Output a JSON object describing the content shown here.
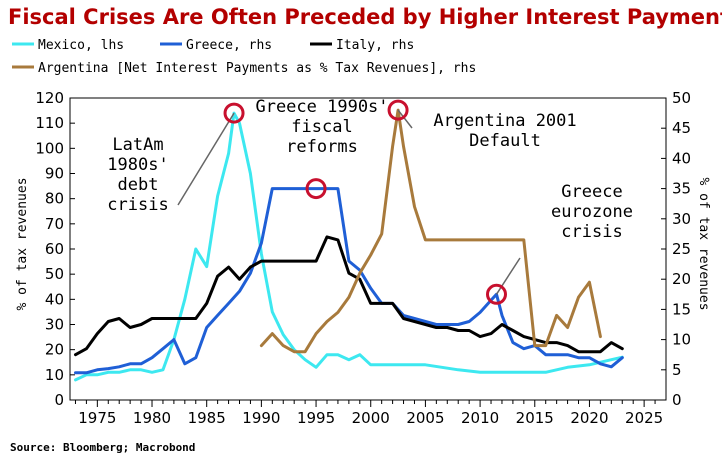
{
  "chart_data": {
    "type": "line",
    "title": "Fiscal Crises Are Often Preceded by Higher Interest Payments",
    "source": "Source: Bloomberg; Macrobond",
    "ylabel_left": "% of tax revenues",
    "ylabel_right": "% of tax revenues",
    "ylim_left": [
      0,
      120
    ],
    "ylim_right": [
      0,
      50
    ],
    "xlim": [
      1972.5,
      2027
    ],
    "x_ticks": [
      1975,
      1980,
      1985,
      1990,
      1995,
      2000,
      2005,
      2010,
      2015,
      2020,
      2025
    ],
    "y_ticks_left": [
      0,
      10,
      20,
      30,
      40,
      50,
      60,
      70,
      80,
      90,
      100,
      110,
      120
    ],
    "y_ticks_right": [
      0,
      5,
      10,
      15,
      20,
      25,
      30,
      35,
      40,
      45,
      50
    ],
    "legend_labels": {
      "mexico": "Mexico, lhs",
      "greece": "Greece, rhs",
      "italy": "Italy, rhs",
      "argentina": "Argentina [Net Interest Payments as % Tax Revenues], rhs"
    },
    "series": [
      {
        "key": "mexico",
        "name": "Mexico, lhs",
        "axis": "left",
        "color": "#3de8f0",
        "x": [
          1973,
          1974,
          1975,
          1976,
          1977,
          1978,
          1979,
          1980,
          1981,
          1982,
          1983,
          1984,
          1985,
          1986,
          1987,
          1987.5,
          1988,
          1989,
          1990,
          1991,
          1992,
          1993,
          1994,
          1995,
          1996,
          1997,
          1998,
          1999,
          2000,
          2001,
          2002,
          2003,
          2005,
          2008,
          2010,
          2012,
          2014,
          2015,
          2016,
          2018,
          2020,
          2022,
          2023
        ],
        "values": [
          8,
          10,
          10,
          11,
          11,
          12,
          12,
          11,
          12,
          24,
          40,
          60,
          53,
          81,
          98,
          114,
          110,
          90,
          58,
          35,
          26,
          20,
          16,
          13,
          18,
          18,
          16,
          18,
          14,
          14,
          14,
          14,
          14,
          12,
          11,
          11,
          11,
          11,
          11,
          13,
          14,
          16,
          17
        ]
      },
      {
        "key": "greece",
        "name": "Greece, rhs",
        "axis": "right",
        "color": "#1f5fd6",
        "x": [
          1973,
          1974,
          1975,
          1976,
          1977,
          1978,
          1979,
          1980,
          1981,
          1982,
          1983,
          1984,
          1985,
          1986,
          1987,
          1988,
          1989,
          1990,
          1991,
          1992,
          1993,
          1994,
          1995,
          1996,
          1997,
          1998,
          1999,
          2000,
          2001,
          2002,
          2003,
          2004,
          2005,
          2006,
          2007,
          2008,
          2009,
          2010,
          2011,
          2011.5,
          2012,
          2013,
          2014,
          2015,
          2016,
          2017,
          2018,
          2019,
          2020,
          2021,
          2022,
          2023
        ],
        "values": [
          4.5,
          4.5,
          5,
          5.2,
          5.5,
          6,
          6,
          7,
          8.5,
          10,
          6,
          7,
          12,
          14,
          16,
          18,
          21,
          26,
          35,
          35,
          35,
          35,
          35,
          35,
          35,
          23,
          21.5,
          18.5,
          16,
          16,
          14,
          13.5,
          13,
          12.5,
          12.5,
          12.5,
          13,
          14.5,
          16.5,
          17.5,
          14,
          9.5,
          8.5,
          9,
          7.5,
          7.5,
          7.5,
          7,
          7,
          6,
          5.5,
          7
        ]
      },
      {
        "key": "italy",
        "name": "Italy, rhs",
        "axis": "right",
        "color": "#000000",
        "x": [
          1973,
          1974,
          1975,
          1976,
          1977,
          1978,
          1979,
          1980,
          1981,
          1982,
          1983,
          1984,
          1985,
          1986,
          1987,
          1988,
          1989,
          1990,
          1991,
          1992,
          1993,
          1994,
          1995,
          1996,
          1997,
          1998,
          1999,
          2000,
          2001,
          2002,
          2003,
          2004,
          2005,
          2006,
          2007,
          2008,
          2009,
          2010,
          2011,
          2012,
          2013,
          2014,
          2015,
          2016,
          2017,
          2018,
          2019,
          2020,
          2021,
          2022,
          2023
        ],
        "values": [
          7.5,
          8.5,
          11,
          13,
          13.5,
          12,
          12.5,
          13.5,
          13.5,
          13.5,
          13.5,
          13.5,
          16,
          20.5,
          22,
          20,
          22,
          23,
          23,
          23,
          23,
          23,
          23,
          27,
          26.5,
          21,
          20,
          16,
          16,
          16,
          13.5,
          13,
          12.5,
          12,
          12,
          11.5,
          11.5,
          10.5,
          11,
          12.5,
          11.5,
          10.5,
          10,
          9.5,
          9.5,
          9,
          8,
          8,
          8,
          9.5,
          8.5
        ]
      },
      {
        "key": "argentina",
        "name": "Argentina [Net Interest Payments as % Tax Revenues], rhs",
        "axis": "right",
        "color": "#a87a3c",
        "x": [
          1990,
          1991,
          1992,
          1993,
          1994,
          1995,
          1996,
          1997,
          1998,
          1999,
          2000,
          2001,
          2002,
          2002.5,
          2003,
          2004,
          2005,
          2006,
          2007,
          2008,
          2009,
          2010,
          2011,
          2012,
          2013,
          2014,
          2015,
          2016,
          2017,
          2018,
          2019,
          2020,
          2021
        ],
        "values": [
          9,
          11,
          9,
          8,
          8,
          11,
          13,
          14.5,
          17,
          21,
          24,
          27.5,
          42,
          48,
          42,
          32,
          26.5,
          26.5,
          26.5,
          26.5,
          26.5,
          26.5,
          26.5,
          26.5,
          26.5,
          26.5,
          9,
          9,
          14,
          12,
          17,
          19.5,
          10.5
        ]
      }
    ],
    "annotations": [
      {
        "lines": [
          "LatAm",
          "1980s'",
          "debt",
          "crisis"
        ]
      },
      {
        "lines": [
          "Greece 1990s'",
          "fiscal",
          "reforms"
        ]
      },
      {
        "lines": [
          "Argentina 2001",
          "Default"
        ]
      },
      {
        "lines": [
          "Greece",
          "eurozone",
          "crisis"
        ]
      }
    ],
    "highlights": [
      {
        "x": 1987.5,
        "value": 114,
        "axis": "left"
      },
      {
        "x": 1995,
        "value": 35,
        "axis": "right"
      },
      {
        "x": 2002.5,
        "value": 48,
        "axis": "right"
      },
      {
        "x": 2011.5,
        "value": 17.5,
        "axis": "right"
      }
    ]
  }
}
